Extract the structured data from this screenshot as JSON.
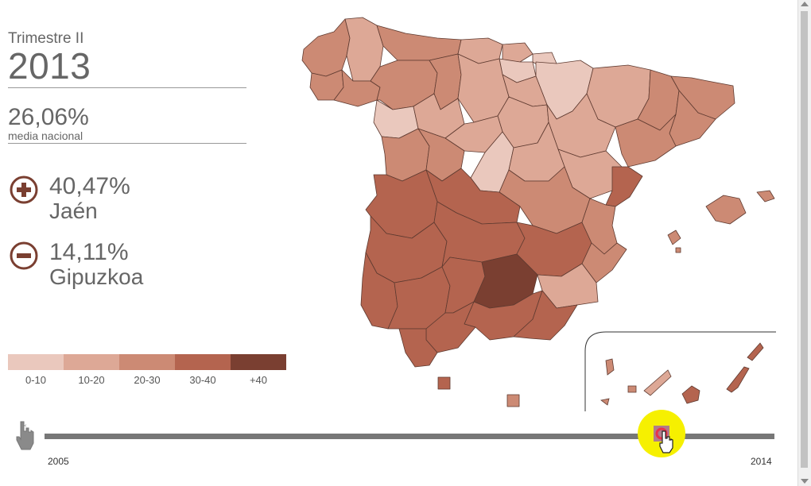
{
  "header": {
    "quarter": "Trimestre II",
    "year": "2013"
  },
  "national": {
    "value": "26,06%",
    "label": "media nacional"
  },
  "max": {
    "icon": "plus-circle-icon",
    "value": "40,47%",
    "name": "Jaén"
  },
  "min": {
    "icon": "minus-circle-icon",
    "value": "14,11%",
    "name": "Gipuzkoa"
  },
  "legend": [
    {
      "label": "0-10",
      "color": "#eac8bd"
    },
    {
      "label": "10-20",
      "color": "#dda896"
    },
    {
      "label": "20-30",
      "color": "#cc8a74"
    },
    {
      "label": "30-40",
      "color": "#b4644f"
    },
    {
      "label": "+40",
      "color": "#7a3f31"
    }
  ],
  "timeline": {
    "start": "2005",
    "end": "2014",
    "position": 0.845,
    "play_icon": "hand-pointer-icon"
  },
  "colors": {
    "accent": "#7a3f31",
    "highlight": "#f6f000",
    "marker": "#e8334a"
  }
}
